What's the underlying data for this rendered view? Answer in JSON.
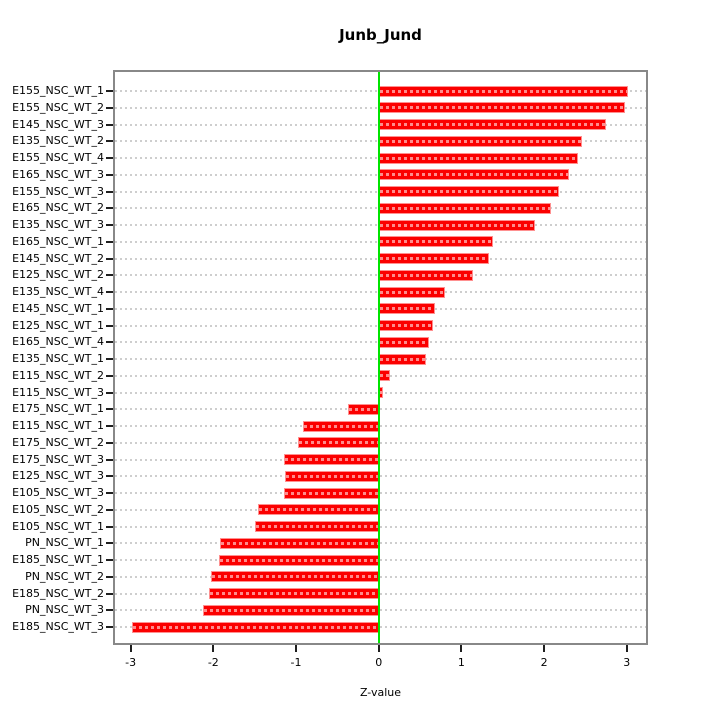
{
  "chart_data": {
    "type": "bar",
    "orientation": "horizontal",
    "title": "Junb_Jund",
    "xlabel": "Z-value",
    "x_ticks": [
      -3,
      -2,
      -1,
      0,
      1,
      2,
      3
    ],
    "xlim": [
      -3.21,
      3.26
    ],
    "zero_reference": 0,
    "grid": "dotted-horizontal-per-category",
    "bar_color": "#ff0000",
    "bar_edge_color": "#ff9090",
    "zero_line_color": "#00e400",
    "grid_color": "#cecece",
    "box_color": "#888888",
    "categories": [
      "E155_NSC_WT_1",
      "E155_NSC_WT_2",
      "E145_NSC_WT_3",
      "E135_NSC_WT_2",
      "E155_NSC_WT_4",
      "E165_NSC_WT_3",
      "E155_NSC_WT_3",
      "E165_NSC_WT_2",
      "E135_NSC_WT_3",
      "E165_NSC_WT_1",
      "E145_NSC_WT_2",
      "E125_NSC_WT_2",
      "E135_NSC_WT_4",
      "E145_NSC_WT_1",
      "E125_NSC_WT_1",
      "E165_NSC_WT_4",
      "E135_NSC_WT_1",
      "E115_NSC_WT_2",
      "E115_NSC_WT_3",
      "E175_NSC_WT_1",
      "E115_NSC_WT_1",
      "E175_NSC_WT_2",
      "E175_NSC_WT_3",
      "E125_NSC_WT_3",
      "E105_NSC_WT_3",
      "E105_NSC_WT_2",
      "E105_NSC_WT_1",
      "PN_NSC_WT_1",
      "E185_NSC_WT_1",
      "PN_NSC_WT_2",
      "E185_NSC_WT_2",
      "PN_NSC_WT_3",
      "E185_NSC_WT_3"
    ],
    "values": [
      3.01,
      2.98,
      2.75,
      2.46,
      2.41,
      2.3,
      2.18,
      2.08,
      1.89,
      1.38,
      1.33,
      1.14,
      0.8,
      0.68,
      0.66,
      0.61,
      0.57,
      0.14,
      0.05,
      -0.37,
      -0.92,
      -0.97,
      -1.14,
      -1.13,
      -1.15,
      -1.46,
      -1.5,
      -1.92,
      -1.93,
      -2.03,
      -2.05,
      -2.13,
      -2.98
    ]
  }
}
